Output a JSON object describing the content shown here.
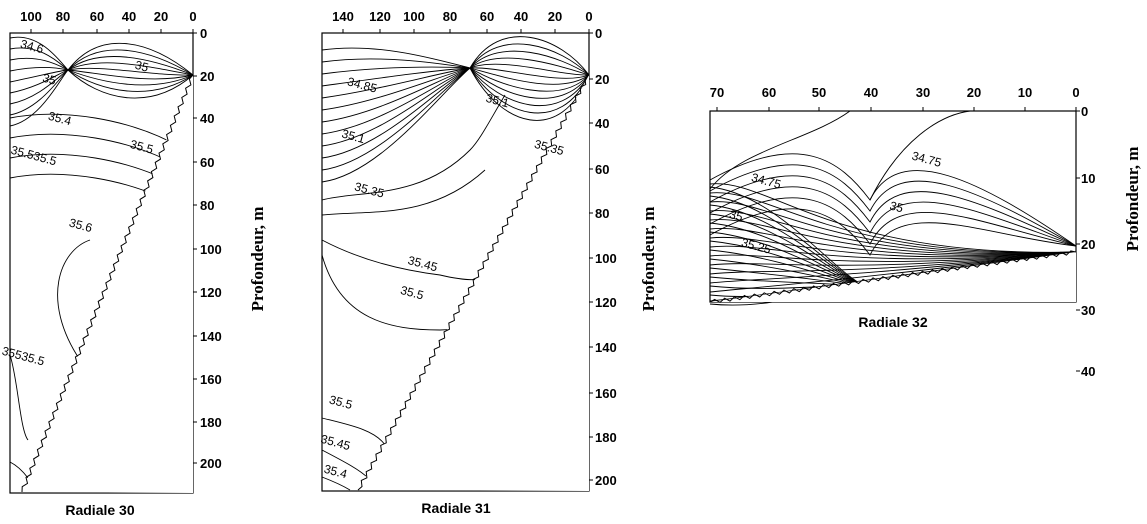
{
  "chart_data": [
    {
      "type": "contour",
      "caption": "Radiale 30",
      "ylabel": "Profondeur, m",
      "x_ticks": [
        "100",
        "80",
        "60",
        "40",
        "20",
        "0"
      ],
      "y_ticks": [
        "0",
        "20",
        "40",
        "60",
        "80",
        "100",
        "120",
        "140",
        "160",
        "180",
        "200"
      ],
      "xlim": [
        105,
        0
      ],
      "ylim": [
        0,
        211
      ],
      "contour_labels": [
        {
          "text": "34.6",
          "x": 93,
          "y": 8
        },
        {
          "text": "35",
          "x": 83,
          "y": 23
        },
        {
          "text": "35",
          "x": 30,
          "y": 17
        },
        {
          "text": "35.4",
          "x": 77,
          "y": 41
        },
        {
          "text": "35.5",
          "x": 30,
          "y": 54
        },
        {
          "text": "35.535.5",
          "x": 92,
          "y": 58
        },
        {
          "text": "35.6",
          "x": 65,
          "y": 90
        },
        {
          "text": "35535.5",
          "x": 98,
          "y": 150
        }
      ]
    },
    {
      "type": "contour",
      "caption": "Radiale 31",
      "ylabel": "Profondeur, m",
      "x_ticks": [
        "140",
        "120",
        "100",
        "80",
        "60",
        "40",
        "20",
        "0"
      ],
      "y_ticks": [
        "0",
        "20",
        "40",
        "60",
        "80",
        "100",
        "120",
        "140",
        "160",
        "180",
        "200"
      ],
      "xlim": [
        150,
        0
      ],
      "ylim": [
        0,
        205
      ],
      "contour_labels": [
        {
          "text": "34.85",
          "x": 128,
          "y": 25
        },
        {
          "text": "35.1",
          "x": 52,
          "y": 32
        },
        {
          "text": "35.1",
          "x": 133,
          "y": 48
        },
        {
          "text": "35.35",
          "x": 23,
          "y": 53
        },
        {
          "text": "35.35",
          "x": 124,
          "y": 72
        },
        {
          "text": "35.45",
          "x": 94,
          "y": 105
        },
        {
          "text": "35.5",
          "x": 100,
          "y": 118
        },
        {
          "text": "35.5",
          "x": 140,
          "y": 167
        },
        {
          "text": "35.45",
          "x": 143,
          "y": 185
        },
        {
          "text": "35.4",
          "x": 143,
          "y": 198
        }
      ]
    },
    {
      "type": "contour",
      "caption": "Radiale 32",
      "ylabel": "Profondeur, m",
      "x_ticks": [
        "70",
        "60",
        "50",
        "40",
        "30",
        "20",
        "10",
        "0"
      ],
      "y_ticks": [
        "0",
        "10",
        "20",
        "30",
        "40"
      ],
      "xlim": [
        73,
        0
      ],
      "ylim": [
        0,
        44
      ],
      "contour_labels": [
        {
          "text": "34.75",
          "x": 30,
          "y": 12
        },
        {
          "text": "34.75",
          "x": 62,
          "y": 17
        },
        {
          "text": "35",
          "x": 36,
          "y": 23
        },
        {
          "text": "35",
          "x": 68,
          "y": 25
        },
        {
          "text": "35.25",
          "x": 64,
          "y": 32
        }
      ]
    }
  ]
}
